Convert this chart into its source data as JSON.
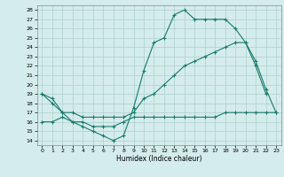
{
  "xlabel": "Humidex (Indice chaleur)",
  "background_color": "#d4eceb",
  "grid_color": "#aed0ce",
  "line_color": "#1a7a6e",
  "xlim": [
    -0.5,
    23.5
  ],
  "ylim": [
    13.5,
    28.5
  ],
  "yticks": [
    14,
    15,
    16,
    17,
    18,
    19,
    20,
    21,
    22,
    23,
    24,
    25,
    26,
    27,
    28
  ],
  "xticks": [
    0,
    1,
    2,
    3,
    4,
    5,
    6,
    7,
    8,
    9,
    10,
    11,
    12,
    13,
    14,
    15,
    16,
    17,
    18,
    19,
    20,
    21,
    22,
    23
  ],
  "line1_x": [
    0,
    1,
    2,
    3,
    4,
    5,
    6,
    7,
    8,
    9,
    10,
    11,
    12,
    13,
    14,
    15,
    16,
    17,
    18,
    19,
    20,
    21,
    22
  ],
  "line1_y": [
    19.0,
    18.0,
    17.0,
    16.0,
    15.5,
    15.0,
    14.5,
    14.0,
    14.5,
    17.5,
    21.5,
    24.5,
    25.0,
    27.5,
    28.0,
    27.0,
    27.0,
    27.0,
    27.0,
    26.0,
    24.5,
    22.0,
    19.0
  ],
  "line2_x": [
    0,
    1,
    2,
    3,
    4,
    5,
    6,
    7,
    8,
    9,
    10,
    11,
    12,
    13,
    14,
    15,
    16,
    17,
    18,
    19,
    20,
    21,
    22,
    23
  ],
  "line2_y": [
    19.0,
    18.5,
    17.0,
    17.0,
    16.5,
    16.5,
    16.5,
    16.5,
    16.5,
    17.0,
    18.5,
    19.0,
    20.0,
    21.0,
    22.0,
    22.5,
    23.0,
    23.5,
    24.0,
    24.5,
    24.5,
    22.5,
    19.5,
    17.0
  ],
  "line3_x": [
    0,
    1,
    2,
    3,
    4,
    5,
    6,
    7,
    8,
    9,
    10,
    11,
    12,
    13,
    14,
    15,
    16,
    17,
    18,
    19,
    20,
    21,
    22,
    23
  ],
  "line3_y": [
    16.0,
    16.0,
    16.5,
    16.0,
    16.0,
    15.5,
    15.5,
    15.5,
    16.0,
    16.5,
    16.5,
    16.5,
    16.5,
    16.5,
    16.5,
    16.5,
    16.5,
    16.5,
    17.0,
    17.0,
    17.0,
    17.0,
    17.0,
    17.0
  ]
}
